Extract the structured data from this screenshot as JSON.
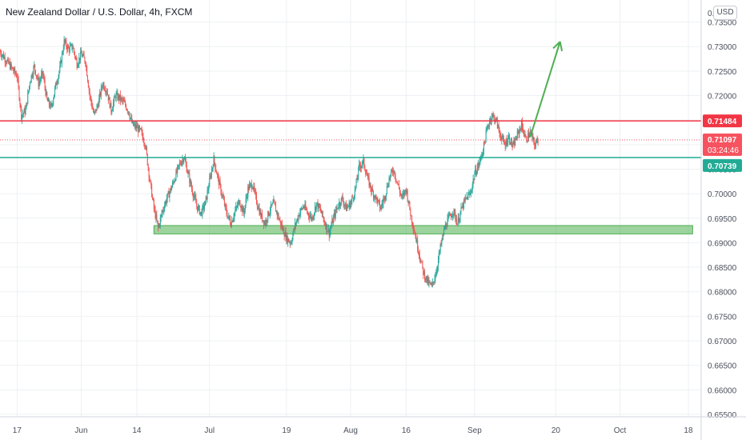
{
  "header": {
    "title": "New Zealand Dollar / U.S. Dollar, 4h, FXCM",
    "currency": "USD"
  },
  "chart_data": {
    "type": "candlestick",
    "symbol": "NZDUSD",
    "timeframe": "4h",
    "y_axis": {
      "range": [
        0.6545,
        0.7395
      ],
      "ticks": [
        0.735,
        0.73,
        0.725,
        0.72,
        0.715,
        0.71,
        0.705,
        0.7,
        0.695,
        0.69,
        0.685,
        0.68,
        0.675,
        0.67,
        0.665,
        0.66,
        0.655
      ],
      "tick_labels": [
        "0.73500",
        "0.73000",
        "0.72500",
        "0.72000",
        "0.71500",
        "0.71000",
        "0.70500",
        "0.70000",
        "0.69500",
        "0.69000",
        "0.68500",
        "0.68000",
        "0.67500",
        "0.67000",
        "0.66500",
        "0.66000",
        "0.65500"
      ],
      "top_partial_label": "0."
    },
    "x_axis": {
      "labels": [
        "17",
        "Jun",
        "14",
        "Jul",
        "19",
        "Aug",
        "16",
        "Sep",
        "20",
        "Oct",
        "18"
      ],
      "label_days": [
        0,
        15,
        28,
        45,
        63,
        78,
        91,
        107,
        126,
        141,
        157
      ],
      "range_days": [
        -4,
        160
      ]
    },
    "price_path": [
      [
        -4,
        0.729
      ],
      [
        0,
        0.724
      ],
      [
        1,
        0.716
      ],
      [
        2,
        0.717
      ],
      [
        3,
        0.723
      ],
      [
        4,
        0.726
      ],
      [
        5,
        0.7225
      ],
      [
        6,
        0.7245
      ],
      [
        7,
        0.719
      ],
      [
        8,
        0.7175
      ],
      [
        9,
        0.722
      ],
      [
        10,
        0.7255
      ],
      [
        11,
        0.731
      ],
      [
        12,
        0.7295
      ],
      [
        13,
        0.73
      ],
      [
        14,
        0.7265
      ],
      [
        15,
        0.7285
      ],
      [
        16,
        0.727
      ],
      [
        17,
        0.72
      ],
      [
        18,
        0.716
      ],
      [
        19,
        0.7185
      ],
      [
        20,
        0.7225
      ],
      [
        21,
        0.721
      ],
      [
        22,
        0.717
      ],
      [
        23,
        0.72
      ],
      [
        24,
        0.7195
      ],
      [
        25,
        0.7185
      ],
      [
        26,
        0.717
      ],
      [
        27,
        0.714
      ],
      [
        28,
        0.7135
      ],
      [
        29,
        0.7125
      ],
      [
        30,
        0.71
      ],
      [
        31,
        0.703
      ],
      [
        32,
        0.697
      ],
      [
        33,
        0.693
      ],
      [
        34,
        0.6965
      ],
      [
        35,
        0.699
      ],
      [
        36,
        0.701
      ],
      [
        37,
        0.7035
      ],
      [
        38,
        0.706
      ],
      [
        39,
        0.7075
      ],
      [
        40,
        0.704
      ],
      [
        41,
        0.7005
      ],
      [
        42,
        0.6975
      ],
      [
        43,
        0.696
      ],
      [
        44,
        0.698
      ],
      [
        45,
        0.7025
      ],
      [
        46,
        0.707
      ],
      [
        47,
        0.703
      ],
      [
        48,
        0.6995
      ],
      [
        49,
        0.696
      ],
      [
        50,
        0.694
      ],
      [
        51,
        0.6965
      ],
      [
        52,
        0.6985
      ],
      [
        53,
        0.696
      ],
      [
        54,
        0.701
      ],
      [
        55,
        0.702
      ],
      [
        56,
        0.6985
      ],
      [
        57,
        0.6955
      ],
      [
        58,
        0.694
      ],
      [
        59,
        0.6965
      ],
      [
        60,
        0.698
      ],
      [
        61,
        0.6955
      ],
      [
        62,
        0.693
      ],
      [
        63,
        0.691
      ],
      [
        64,
        0.69
      ],
      [
        65,
        0.6935
      ],
      [
        66,
        0.696
      ],
      [
        67,
        0.6975
      ],
      [
        68,
        0.696
      ],
      [
        69,
        0.695
      ],
      [
        70,
        0.698
      ],
      [
        71,
        0.6965
      ],
      [
        72,
        0.694
      ],
      [
        73,
        0.692
      ],
      [
        74,
        0.695
      ],
      [
        75,
        0.6975
      ],
      [
        76,
        0.699
      ],
      [
        77,
        0.697
      ],
      [
        78,
        0.698
      ],
      [
        79,
        0.7005
      ],
      [
        80,
        0.7055
      ],
      [
        81,
        0.7065
      ],
      [
        82,
        0.703
      ],
      [
        83,
        0.7005
      ],
      [
        84,
        0.699
      ],
      [
        85,
        0.697
      ],
      [
        86,
        0.6995
      ],
      [
        87,
        0.703
      ],
      [
        88,
        0.705
      ],
      [
        89,
        0.702
      ],
      [
        90,
        0.699
      ],
      [
        91,
        0.701
      ],
      [
        92,
        0.696
      ],
      [
        93,
        0.692
      ],
      [
        94,
        0.688
      ],
      [
        95,
        0.684
      ],
      [
        96,
        0.682
      ],
      [
        97,
        0.681
      ],
      [
        98,
        0.684
      ],
      [
        99,
        0.689
      ],
      [
        100,
        0.693
      ],
      [
        101,
        0.695
      ],
      [
        102,
        0.6965
      ],
      [
        103,
        0.694
      ],
      [
        104,
        0.697
      ],
      [
        105,
        0.699
      ],
      [
        106,
        0.7
      ],
      [
        107,
        0.704
      ],
      [
        108,
        0.706
      ],
      [
        109,
        0.709
      ],
      [
        110,
        0.7135
      ],
      [
        111,
        0.716
      ],
      [
        112,
        0.715
      ],
      [
        113,
        0.712
      ],
      [
        114,
        0.71
      ],
      [
        115,
        0.7115
      ],
      [
        116,
        0.7095
      ],
      [
        117,
        0.712
      ],
      [
        118,
        0.714
      ],
      [
        119,
        0.711
      ],
      [
        120,
        0.7125
      ],
      [
        121,
        0.71
      ],
      [
        122,
        0.711
      ]
    ],
    "levels": {
      "resistance": {
        "value": 0.71484,
        "label": "0.71484",
        "color": "#f23645"
      },
      "support": {
        "value": 0.70739,
        "label": "0.70739",
        "color": "#22ab94"
      },
      "current": {
        "value": 0.71097,
        "label": "0.71097",
        "countdown": "03:24:46",
        "color": "#f7525f"
      }
    },
    "support_zone": {
      "from_day": 32,
      "to_day": 158,
      "low": 0.6918,
      "high": 0.6935,
      "color": "#4caf50"
    },
    "forecast_arrow": {
      "from": [
        120,
        0.7115
      ],
      "to": [
        127,
        0.731
      ],
      "color": "#4caf50"
    },
    "colors": {
      "up": "#26a69a",
      "down": "#ef5350",
      "grid": "#eef0f3",
      "axis_text": "#4a4f5c"
    }
  }
}
